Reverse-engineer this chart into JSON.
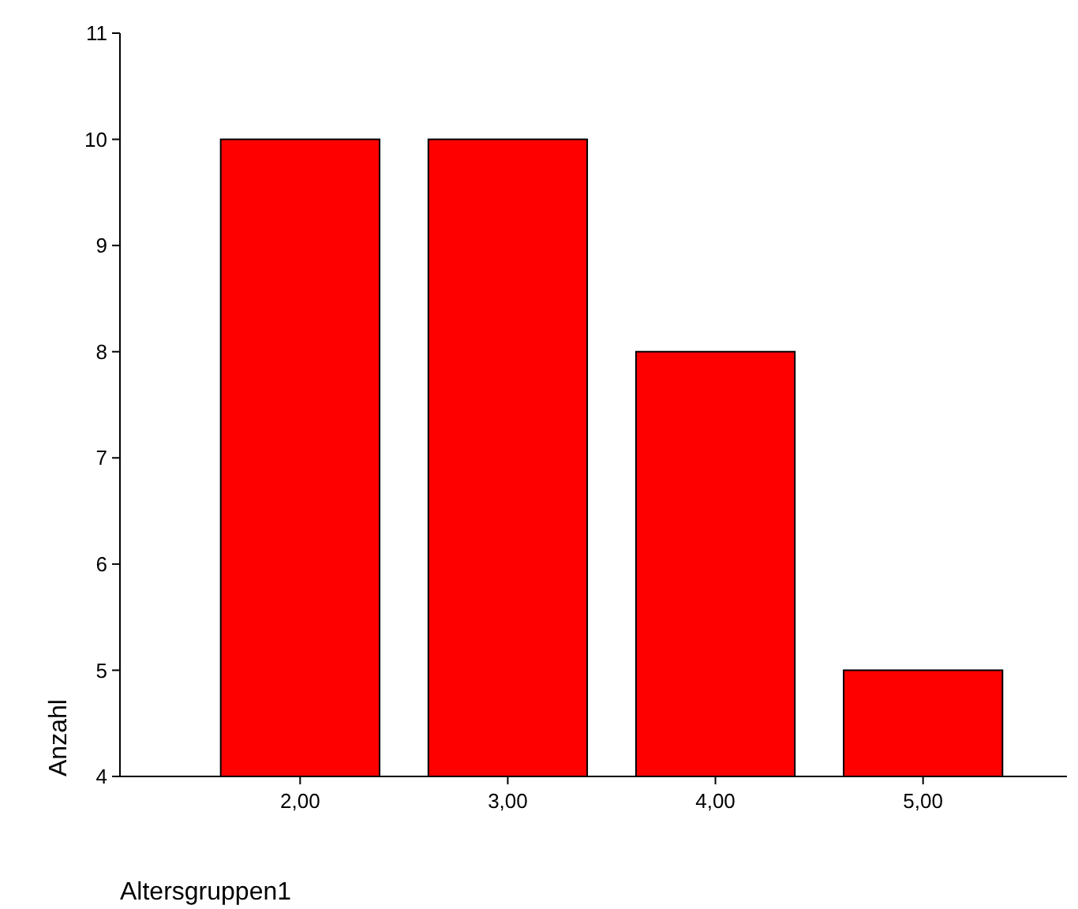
{
  "chart_data": {
    "type": "bar",
    "xlabel": "Altersgruppen1",
    "ylabel": "Anzahl",
    "categories": [
      "2,00",
      "3,00",
      "4,00",
      "5,00"
    ],
    "values": [
      10,
      10,
      8,
      5
    ],
    "color": "#ff0000",
    "ylim": [
      4,
      11
    ],
    "yticks": [
      4,
      5,
      6,
      7,
      8,
      9,
      10,
      11
    ],
    "grid": false
  }
}
